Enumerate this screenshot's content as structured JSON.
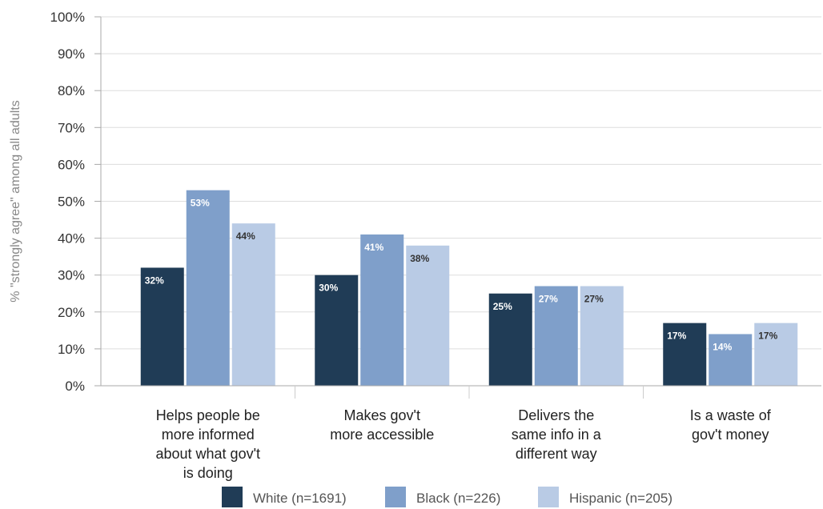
{
  "chart_data": {
    "type": "bar",
    "ylabel": "% \"strongly agree\" among all adults",
    "ylim": [
      0,
      100
    ],
    "y_ticks": [
      "0%",
      "10%",
      "20%",
      "30%",
      "40%",
      "50%",
      "60%",
      "70%",
      "80%",
      "90%",
      "100%"
    ],
    "grid": true,
    "legend_position": "bottom",
    "categories": [
      [
        "Helps people be",
        "more informed",
        "about what gov't",
        "is doing"
      ],
      [
        "Makes gov't",
        "more accessible"
      ],
      [
        "Delivers the",
        "same info in a",
        "different way"
      ],
      [
        "Is a waste of",
        "gov't money"
      ]
    ],
    "series": [
      {
        "name": "White (n=1691)",
        "color": "#203c56",
        "label_color": "#ffffff",
        "values": [
          32,
          30,
          25,
          17
        ],
        "labels": [
          "32%",
          "30%",
          "25%",
          "17%"
        ]
      },
      {
        "name": "Black (n=226)",
        "color": "#7f9fca",
        "label_color": "#ffffff",
        "values": [
          53,
          41,
          27,
          14
        ],
        "labels": [
          "53%",
          "41%",
          "27%",
          "14%"
        ]
      },
      {
        "name": "Hispanic (n=205)",
        "color": "#b9cbe5",
        "label_color": "#333333",
        "values": [
          44,
          38,
          27,
          17
        ],
        "labels": [
          "44%",
          "38%",
          "27%",
          "17%"
        ]
      }
    ]
  }
}
